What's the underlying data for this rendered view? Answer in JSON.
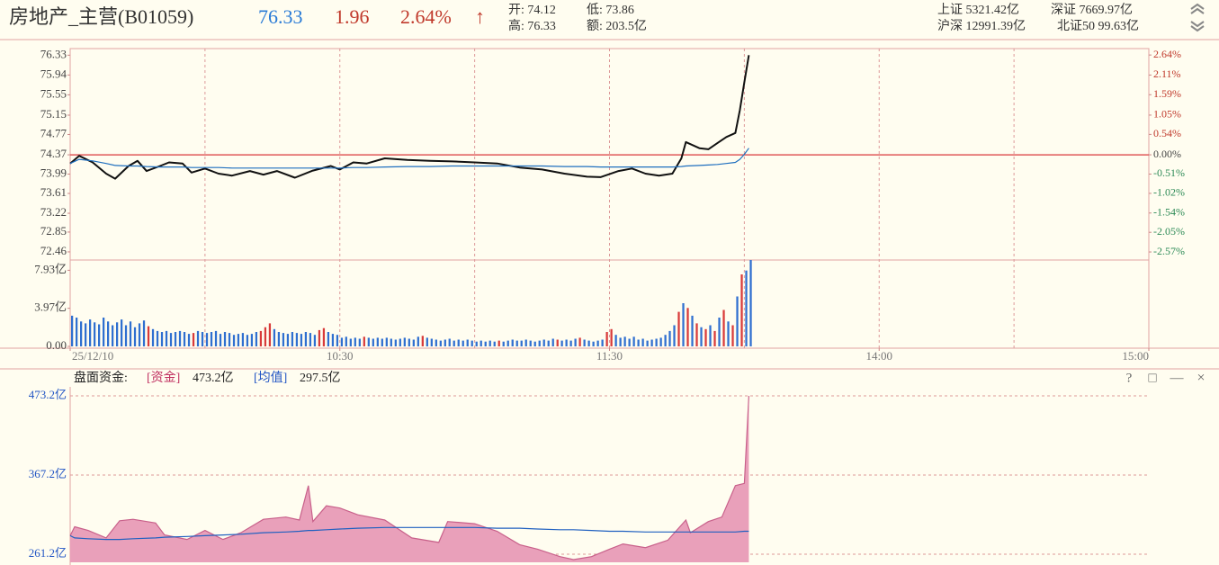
{
  "header": {
    "title": "房地产_主营(B01059)",
    "price": "76.33",
    "change": "1.96",
    "pct": "2.64%",
    "arrow": "↑",
    "stats": [
      "开: 74.12",
      "低: 73.86",
      "高: 76.33",
      "额: 203.5亿"
    ],
    "indices": [
      "上证 5321.42亿",
      "深证 7669.97亿",
      "沪深 12991.39亿",
      "北证50 99.63亿"
    ]
  },
  "funds_header": {
    "label": "盘面资金:",
    "fund_tag": "[资金]",
    "fund_value": "473.2亿",
    "avg_tag": "[均值]",
    "avg_value": "297.5亿"
  },
  "toolbar": [
    "?",
    "□",
    "—",
    "×"
  ],
  "chart_data": [
    {
      "type": "line",
      "x": [
        0,
        2,
        5,
        8,
        10,
        13,
        15,
        17,
        20,
        22,
        25,
        27,
        30,
        33,
        36,
        40,
        43,
        46,
        50,
        54,
        58,
        60,
        63,
        66,
        70,
        75,
        80,
        85,
        90,
        95,
        100,
        105,
        110,
        115,
        118,
        122,
        125,
        128,
        131,
        134,
        136,
        137,
        140,
        142,
        144,
        146,
        148,
        149,
        150,
        151
      ],
      "series": [
        {
          "color": "#111111",
          "values": [
            74.2,
            74.35,
            74.22,
            74.0,
            73.9,
            74.15,
            74.25,
            74.05,
            74.15,
            74.22,
            74.2,
            74.02,
            74.1,
            74.0,
            73.96,
            74.05,
            73.98,
            74.05,
            73.92,
            74.06,
            74.15,
            74.08,
            74.22,
            74.2,
            74.3,
            74.27,
            74.25,
            74.24,
            74.22,
            74.2,
            74.12,
            74.08,
            74.0,
            73.94,
            73.93,
            74.05,
            74.1,
            74.0,
            73.96,
            74.0,
            74.3,
            74.62,
            74.5,
            74.48,
            74.6,
            74.72,
            74.8,
            75.25,
            75.8,
            76.33
          ]
        },
        {
          "color": "#1f6fbf",
          "values": [
            74.2,
            74.28,
            74.25,
            74.2,
            74.16,
            74.15,
            74.15,
            74.14,
            74.13,
            74.13,
            74.13,
            74.12,
            74.12,
            74.12,
            74.11,
            74.11,
            74.11,
            74.11,
            74.11,
            74.11,
            74.11,
            74.11,
            74.12,
            74.12,
            74.13,
            74.14,
            74.14,
            74.15,
            74.15,
            74.15,
            74.15,
            74.15,
            74.14,
            74.14,
            74.13,
            74.13,
            74.13,
            74.13,
            74.13,
            74.13,
            74.14,
            74.15,
            74.16,
            74.17,
            74.18,
            74.2,
            74.22,
            74.28,
            74.38,
            74.5
          ]
        }
      ],
      "xlim": [
        0,
        240
      ],
      "xticks": [
        {
          "value": 0,
          "label": "25/12/10"
        },
        {
          "value": 60,
          "label": "10:30"
        },
        {
          "value": 120,
          "label": "11:30"
        },
        {
          "value": 180,
          "label": "14:00"
        },
        {
          "value": 240,
          "label": "15:00"
        }
      ],
      "xgrid": [
        30,
        60,
        90,
        120,
        150,
        180,
        210
      ],
      "ylim": [
        72.3,
        76.46
      ],
      "yticks": [
        76.33,
        75.94,
        75.55,
        75.15,
        74.77,
        74.37,
        73.99,
        73.61,
        73.22,
        72.85,
        72.46
      ],
      "y2lim": [
        -2.783,
        2.81
      ],
      "y2ticks": [
        {
          "value": 2.64,
          "label": "2.64%"
        },
        {
          "value": 2.11,
          "label": "2.11%"
        },
        {
          "value": 1.59,
          "label": "1.59%"
        },
        {
          "value": 1.05,
          "label": "1.05%"
        },
        {
          "value": 0.54,
          "label": "0.54%"
        },
        {
          "value": 0.0,
          "label": "0.00%"
        },
        {
          "value": -0.51,
          "label": "-0.51%"
        },
        {
          "value": -1.02,
          "label": "-1.02%"
        },
        {
          "value": -1.54,
          "label": "-1.54%"
        },
        {
          "value": -2.05,
          "label": "-2.05%"
        },
        {
          "value": -2.57,
          "label": "-2.57%"
        }
      ],
      "y2_colors": [
        "#c0392b",
        "#c0392b",
        "#c0392b",
        "#c0392b",
        "#c0392b",
        "#444444",
        "#2e8b57",
        "#2e8b57",
        "#2e8b57",
        "#2e8b57",
        "#2e8b57"
      ],
      "baseline": 74.37,
      "baseline_color": "#e05a5a",
      "tick_color": "#444444",
      "grid": false
    },
    {
      "type": "bar",
      "x": [
        0,
        1,
        2,
        3,
        4,
        5,
        6,
        7,
        8,
        9,
        10,
        11,
        12,
        13,
        14,
        15,
        16,
        17,
        18,
        19,
        20,
        21,
        22,
        23,
        24,
        25,
        26,
        27,
        28,
        29,
        30,
        31,
        32,
        33,
        34,
        35,
        36,
        37,
        38,
        39,
        40,
        41,
        42,
        43,
        44,
        45,
        46,
        47,
        48,
        49,
        50,
        51,
        52,
        53,
        54,
        55,
        56,
        57,
        58,
        59,
        60,
        61,
        62,
        63,
        64,
        65,
        66,
        67,
        68,
        69,
        70,
        71,
        72,
        73,
        74,
        75,
        76,
        77,
        78,
        79,
        80,
        81,
        82,
        83,
        84,
        85,
        86,
        87,
        88,
        89,
        90,
        91,
        92,
        93,
        94,
        95,
        96,
        97,
        98,
        99,
        100,
        101,
        102,
        103,
        104,
        105,
        106,
        107,
        108,
        109,
        110,
        111,
        112,
        113,
        114,
        115,
        116,
        117,
        118,
        119,
        120,
        121,
        122,
        123,
        124,
        125,
        126,
        127,
        128,
        129,
        130,
        131,
        132,
        133,
        134,
        135,
        136,
        137,
        138,
        139,
        140,
        141,
        142,
        143,
        144,
        145,
        146,
        147,
        148,
        149,
        150,
        151
      ],
      "values": [
        3.2,
        3.0,
        2.6,
        2.4,
        2.8,
        2.5,
        2.3,
        3.0,
        2.6,
        2.2,
        2.5,
        2.8,
        2.2,
        2.6,
        2.0,
        2.4,
        2.7,
        2.1,
        1.8,
        1.6,
        1.5,
        1.6,
        1.4,
        1.5,
        1.6,
        1.5,
        1.3,
        1.4,
        1.6,
        1.5,
        1.4,
        1.5,
        1.6,
        1.3,
        1.5,
        1.4,
        1.2,
        1.3,
        1.4,
        1.2,
        1.3,
        1.5,
        1.6,
        2.0,
        2.4,
        1.8,
        1.5,
        1.4,
        1.3,
        1.5,
        1.4,
        1.3,
        1.5,
        1.4,
        1.2,
        1.7,
        1.9,
        1.5,
        1.3,
        1.2,
        0.9,
        1.0,
        0.8,
        0.9,
        0.8,
        1.0,
        0.9,
        0.8,
        0.9,
        0.8,
        0.9,
        0.8,
        0.7,
        0.8,
        0.9,
        0.8,
        0.7,
        1.0,
        1.1,
        0.9,
        0.8,
        0.7,
        0.6,
        0.7,
        0.8,
        0.6,
        0.7,
        0.6,
        0.7,
        0.6,
        0.5,
        0.6,
        0.5,
        0.6,
        0.5,
        0.6,
        0.5,
        0.6,
        0.7,
        0.6,
        0.6,
        0.7,
        0.6,
        0.5,
        0.6,
        0.7,
        0.6,
        0.8,
        0.7,
        0.6,
        0.7,
        0.6,
        0.8,
        0.9,
        0.7,
        0.6,
        0.5,
        0.6,
        0.7,
        1.5,
        1.8,
        1.2,
        0.9,
        1.0,
        0.8,
        1.0,
        0.7,
        0.8,
        0.6,
        0.7,
        0.8,
        0.9,
        1.2,
        1.6,
        2.2,
        3.6,
        4.5,
        4.0,
        3.2,
        2.4,
        2.0,
        1.8,
        2.2,
        1.6,
        3.0,
        3.8,
        2.6,
        2.2,
        5.2,
        7.5,
        7.9,
        9.0
      ],
      "colors": [
        "#2f6fd0",
        "#2f6fd0",
        "#2f6fd0",
        "#2f6fd0",
        "#2f6fd0",
        "#2f6fd0",
        "#2f6fd0",
        "#2f6fd0",
        "#2f6fd0",
        "#2f6fd0",
        "#2f6fd0",
        "#2f6fd0",
        "#2f6fd0",
        "#2f6fd0",
        "#2f6fd0",
        "#2f6fd0",
        "#2f6fd0",
        "#d83a3a",
        "#2f6fd0",
        "#2f6fd0",
        "#2f6fd0",
        "#2f6fd0",
        "#2f6fd0",
        "#2f6fd0",
        "#2f6fd0",
        "#2f6fd0",
        "#2f6fd0",
        "#d83a3a",
        "#2f6fd0",
        "#2f6fd0",
        "#2f6fd0",
        "#2f6fd0",
        "#2f6fd0",
        "#2f6fd0",
        "#2f6fd0",
        "#2f6fd0",
        "#2f6fd0",
        "#2f6fd0",
        "#2f6fd0",
        "#2f6fd0",
        "#2f6fd0",
        "#2f6fd0",
        "#d83a3a",
        "#d83a3a",
        "#d83a3a",
        "#2f6fd0",
        "#2f6fd0",
        "#2f6fd0",
        "#2f6fd0",
        "#2f6fd0",
        "#2f6fd0",
        "#2f6fd0",
        "#2f6fd0",
        "#2f6fd0",
        "#2f6fd0",
        "#d83a3a",
        "#d83a3a",
        "#2f6fd0",
        "#2f6fd0",
        "#2f6fd0",
        "#2f6fd0",
        "#2f6fd0",
        "#2f6fd0",
        "#2f6fd0",
        "#2f6fd0",
        "#d83a3a",
        "#2f6fd0",
        "#2f6fd0",
        "#2f6fd0",
        "#2f6fd0",
        "#2f6fd0",
        "#2f6fd0",
        "#2f6fd0",
        "#2f6fd0",
        "#2f6fd0",
        "#2f6fd0",
        "#2f6fd0",
        "#2f6fd0",
        "#d83a3a",
        "#2f6fd0",
        "#2f6fd0",
        "#2f6fd0",
        "#2f6fd0",
        "#2f6fd0",
        "#2f6fd0",
        "#2f6fd0",
        "#2f6fd0",
        "#2f6fd0",
        "#2f6fd0",
        "#2f6fd0",
        "#2f6fd0",
        "#2f6fd0",
        "#2f6fd0",
        "#2f6fd0",
        "#2f6fd0",
        "#d83a3a",
        "#2f6fd0",
        "#2f6fd0",
        "#2f6fd0",
        "#2f6fd0",
        "#2f6fd0",
        "#2f6fd0",
        "#2f6fd0",
        "#2f6fd0",
        "#2f6fd0",
        "#2f6fd0",
        "#2f6fd0",
        "#2f6fd0",
        "#d83a3a",
        "#2f6fd0",
        "#2f6fd0",
        "#2f6fd0",
        "#2f6fd0",
        "#d83a3a",
        "#2f6fd0",
        "#2f6fd0",
        "#2f6fd0",
        "#2f6fd0",
        "#2f6fd0",
        "#d83a3a",
        "#d83a3a",
        "#2f6fd0",
        "#2f6fd0",
        "#2f6fd0",
        "#2f6fd0",
        "#2f6fd0",
        "#2f6fd0",
        "#2f6fd0",
        "#2f6fd0",
        "#2f6fd0",
        "#2f6fd0",
        "#2f6fd0",
        "#2f6fd0",
        "#2f6fd0",
        "#2f6fd0",
        "#d83a3a",
        "#2f6fd0",
        "#d83a3a",
        "#2f6fd0",
        "#d83a3a",
        "#2f6fd0",
        "#d83a3a",
        "#2f6fd0",
        "#d83a3a",
        "#2f6fd0",
        "#d83a3a",
        "#2f6fd0",
        "#d83a3a",
        "#2f6fd0",
        "#d83a3a",
        "#2f6fd0",
        "#2f6fd0"
      ],
      "xlim": [
        0,
        240
      ],
      "ylim": [
        0,
        9.0
      ],
      "yticks": [
        {
          "value": 7.93,
          "label": "7.93亿"
        },
        {
          "value": 3.97,
          "label": "3.97亿"
        },
        {
          "value": 0,
          "label": "0.00"
        }
      ],
      "tick_color": "#444444",
      "grid": false
    },
    {
      "type": "area",
      "x": [
        0,
        1,
        4,
        8,
        11,
        14,
        19,
        21,
        26,
        30,
        34,
        38,
        43,
        48,
        51,
        53,
        54,
        57,
        60,
        64,
        70,
        76,
        82,
        84,
        90,
        95,
        100,
        104,
        109,
        112,
        116,
        120,
        123,
        128,
        133,
        137,
        138,
        142,
        145,
        148,
        150,
        151
      ],
      "series": [
        {
          "color": "#c8608a",
          "fill": "#e9a0ba",
          "values": [
            286,
            298,
            293,
            283,
            306,
            308,
            303,
            287,
            281,
            293,
            281,
            290,
            308,
            311,
            307,
            353,
            305,
            326,
            323,
            314,
            307,
            283,
            277,
            305,
            302,
            292,
            274,
            268,
            258,
            254,
            258,
            268,
            275,
            270,
            280,
            307,
            290,
            305,
            311,
            353,
            356,
            473.2
          ]
        },
        {
          "color": "#2060c0",
          "values": [
            286,
            283,
            282,
            281,
            281,
            282,
            283,
            284,
            285,
            286,
            287,
            288,
            290,
            291,
            292,
            293,
            293,
            294,
            295,
            296,
            297,
            297,
            297,
            297,
            297,
            296,
            296,
            295,
            294,
            294,
            293,
            292,
            292,
            291,
            291,
            291,
            291,
            291,
            291,
            291,
            292,
            292
          ]
        }
      ],
      "xlim": [
        0,
        240
      ],
      "ylim": [
        250.4,
        485.2
      ],
      "yticks": [
        {
          "value": 473.2,
          "label": "473.2亿"
        },
        {
          "value": 367.2,
          "label": "367.2亿"
        },
        {
          "value": 261.2,
          "label": "261.2亿"
        }
      ],
      "tick_color": "#2255c4",
      "grid": true
    }
  ]
}
